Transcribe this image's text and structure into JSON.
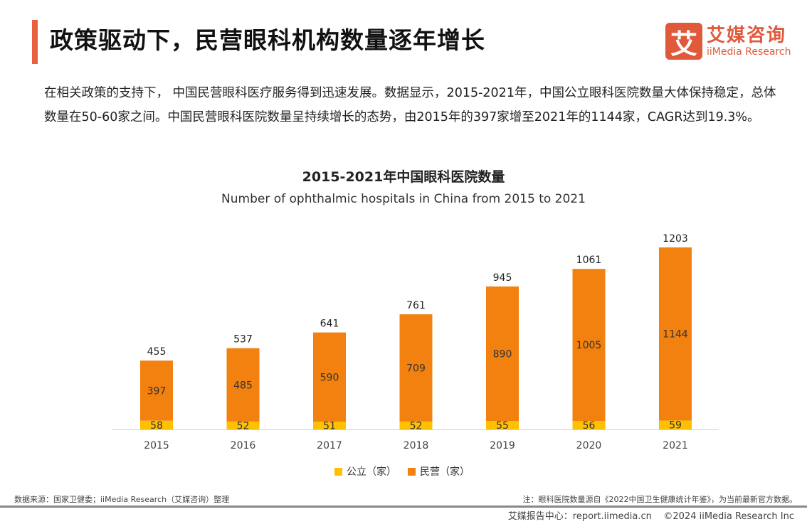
{
  "header": {
    "title": "政策驱动下，民营眼科机构数量逐年增长",
    "logo_cn": "艾媒咨询",
    "logo_en": "iiMedia Research",
    "logo_mark": "艾"
  },
  "intro": "在相关政策的支持下， 中国民营眼科医疗服务得到迅速发展。数据显示，2015-2021年，中国公立眼科医院数量大体保持稳定，总体数量在50-60家之间。中国民营眼科医院数量呈持续增长的态势，由2015年的397家增至2021年的1144家，CAGR达到19.3%。",
  "chart_data": {
    "type": "bar",
    "stacked": true,
    "title": "2015-2021年中国眼科医院数量",
    "subtitle": "Number of ophthalmic hospitals in China from 2015 to 2021",
    "categories": [
      "2015",
      "2016",
      "2017",
      "2018",
      "2019",
      "2020",
      "2021"
    ],
    "series": [
      {
        "name": "公立（家）",
        "values": [
          58,
          52,
          51,
          52,
          55,
          56,
          59
        ],
        "color": "#FFC000"
      },
      {
        "name": "民营（家）",
        "values": [
          397,
          485,
          590,
          709,
          890,
          1005,
          1144
        ],
        "color": "#F28110"
      }
    ],
    "totals": [
      455,
      537,
      641,
      761,
      945,
      1061,
      1203
    ],
    "legend": "bottom",
    "grid": false
  },
  "footer": {
    "source": "数据来源：国家卫健委；iiMedia Research（艾媒咨询）整理",
    "note": "注：眼科医院数量源自《2022中国卫生健康统计年鉴》，为当前最新官方数据。",
    "site": "艾媒报告中心：report.iimedia.cn",
    "copyright": "©2024  iiMedia Research  Inc"
  }
}
